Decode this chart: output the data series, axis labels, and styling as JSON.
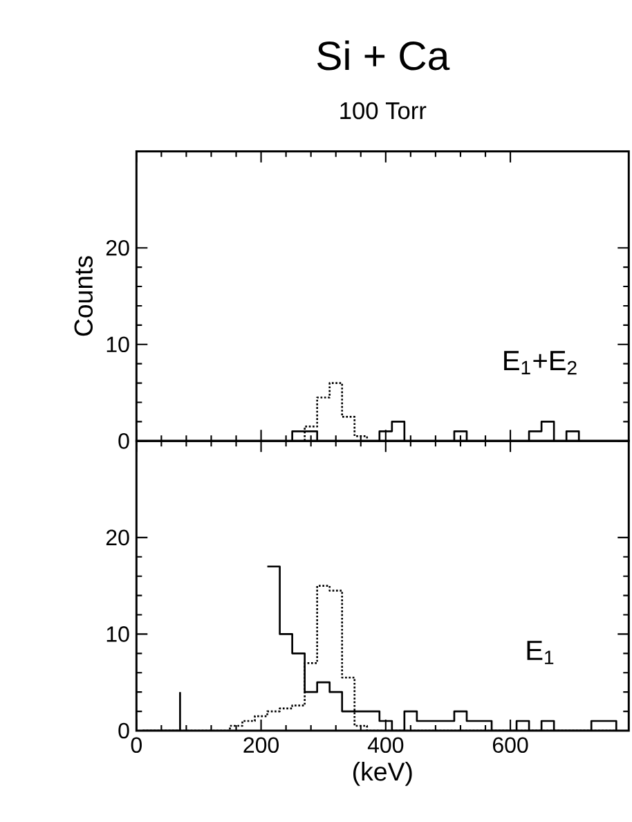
{
  "chart_data": [
    {
      "type": "step",
      "title": "Si + Ca",
      "subtitle": "100 Torr",
      "ylabel": "Counts",
      "annotations": [
        "E$_{1}$+E$_{2}$"
      ],
      "xlim": [
        0,
        790
      ],
      "ylim": [
        0,
        30
      ],
      "xticks": [
        0,
        200,
        400,
        600
      ],
      "yticks": [
        0,
        10,
        20
      ],
      "tick_labels": "y",
      "x": [
        10,
        30,
        50,
        70,
        90,
        110,
        130,
        150,
        170,
        190,
        210,
        230,
        250,
        270,
        290,
        310,
        330,
        350,
        370,
        390,
        410,
        430,
        450,
        470,
        490,
        510,
        530,
        550,
        570,
        590,
        610,
        630,
        650,
        670,
        690,
        710,
        730,
        750,
        770
      ],
      "series": [
        {
          "color": "#000000",
          "line_style": "solid",
          "values": [
            0,
            0,
            0,
            0,
            0,
            0,
            0,
            0,
            0,
            0,
            0,
            0,
            1,
            1,
            0,
            0,
            0,
            0,
            0,
            1,
            2,
            0,
            0,
            0,
            0,
            1,
            0,
            0,
            0,
            0,
            0,
            1,
            2,
            0,
            1,
            0,
            0,
            0,
            0
          ]
        },
        {
          "color": "#000000",
          "line_style": "dotted",
          "values": [
            0,
            0,
            0,
            0,
            0,
            0,
            0,
            0,
            0,
            0,
            0,
            0,
            0,
            1.5,
            4.5,
            6,
            2.5,
            0.5,
            0,
            0,
            0,
            0,
            0,
            0,
            0,
            0,
            0,
            0,
            0,
            0,
            0,
            0,
            0,
            0,
            0,
            0,
            0,
            0,
            0
          ]
        }
      ]
    },
    {
      "type": "step",
      "xlabel": "(keV)",
      "annotations": [
        "E$_{1}$"
      ],
      "xlim": [
        0,
        790
      ],
      "ylim": [
        0,
        30
      ],
      "xticks": [
        0,
        200,
        400,
        600
      ],
      "yticks": [
        0,
        10,
        20
      ],
      "x": [
        10,
        30,
        50,
        70,
        90,
        110,
        130,
        150,
        170,
        190,
        210,
        230,
        250,
        270,
        290,
        310,
        330,
        350,
        370,
        390,
        410,
        430,
        450,
        470,
        490,
        510,
        530,
        550,
        570,
        590,
        610,
        630,
        650,
        670,
        690,
        710,
        730,
        750,
        770
      ],
      "series": [
        {
          "color": "#000000",
          "line_style": "solid",
          "values": [
            0,
            0,
            0,
            4,
            null,
            null,
            null,
            null,
            null,
            null,
            17,
            10,
            8,
            4,
            5,
            4,
            2,
            2,
            2,
            1,
            0,
            2,
            1,
            1,
            1,
            2,
            1,
            1,
            0,
            0,
            1,
            0,
            1,
            0,
            0,
            0,
            1,
            1,
            0
          ]
        },
        {
          "color": "#000000",
          "line_style": "dotted",
          "values": [
            0,
            0,
            0,
            0,
            0,
            0,
            0,
            0.5,
            1,
            1.5,
            2,
            2.3,
            2.6,
            7,
            15,
            14.5,
            5.5,
            0.5,
            0,
            0,
            0,
            0,
            0,
            0,
            0,
            0,
            0,
            0,
            0,
            0,
            0,
            0,
            0,
            0,
            0,
            0,
            0,
            0,
            0
          ]
        }
      ]
    }
  ]
}
